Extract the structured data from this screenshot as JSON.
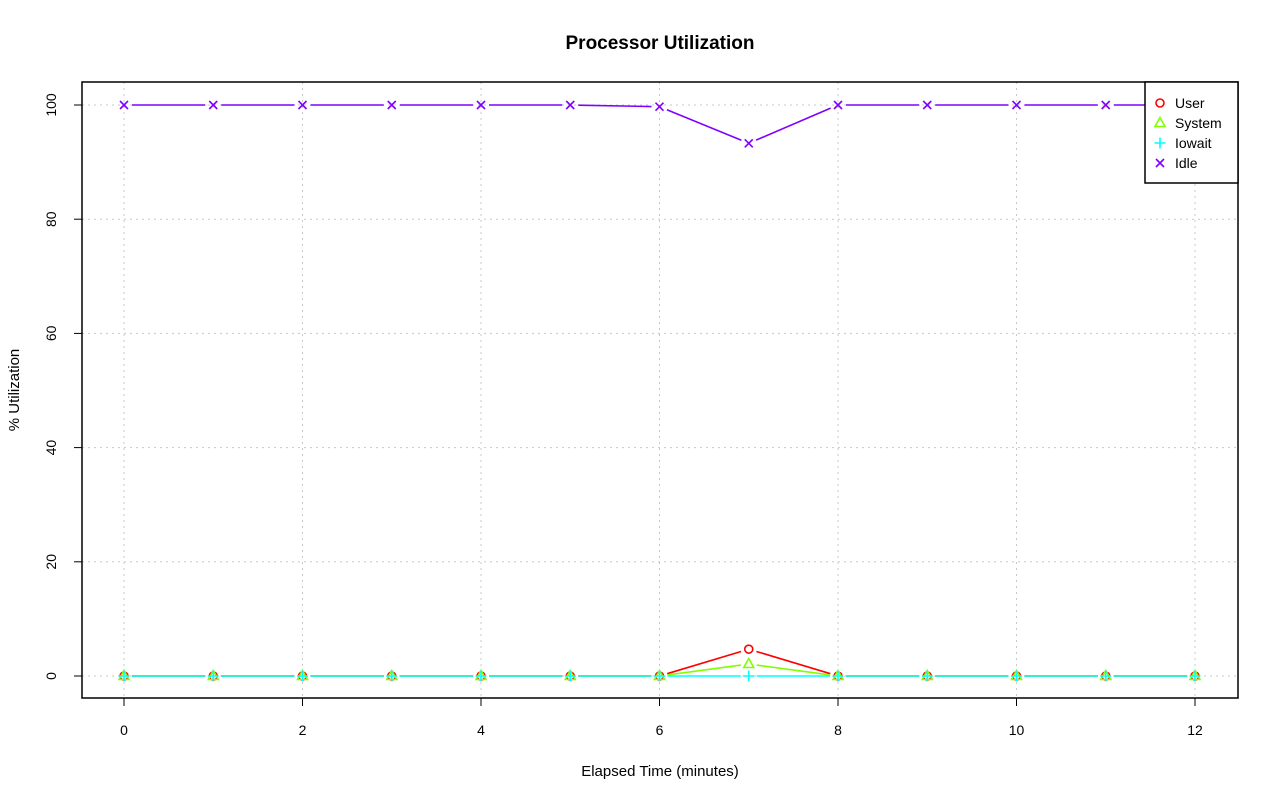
{
  "chart_data": {
    "type": "line",
    "title": "Processor Utilization",
    "xlabel": "Elapsed Time (minutes)",
    "ylabel": "% Utilization",
    "x": [
      0,
      1,
      2,
      3,
      4,
      5,
      6,
      7,
      8,
      9,
      10,
      11,
      12
    ],
    "xlim": [
      -0.47,
      12.47
    ],
    "ylim": [
      -4,
      104
    ],
    "xticks": [
      0,
      2,
      4,
      6,
      8,
      10,
      12
    ],
    "yticks": [
      0,
      20,
      40,
      60,
      80,
      100
    ],
    "grid": true,
    "legend_position": "top-right",
    "series": [
      {
        "name": "User",
        "color": "#ff0000",
        "marker": "circle",
        "values": [
          0,
          0,
          0,
          0,
          0,
          0,
          0,
          4.7,
          0,
          0,
          0,
          0,
          0
        ]
      },
      {
        "name": "System",
        "color": "#80ff00",
        "marker": "triangle",
        "values": [
          0,
          0,
          0,
          0,
          0,
          0,
          0,
          2.1,
          0,
          0,
          0,
          0,
          0
        ]
      },
      {
        "name": "Iowait",
        "color": "#00ffff",
        "marker": "plus",
        "values": [
          0,
          0,
          0,
          0,
          0,
          0,
          0,
          0,
          0,
          0,
          0,
          0,
          0
        ]
      },
      {
        "name": "Idle",
        "color": "#8000ff",
        "marker": "cross",
        "values": [
          100,
          100,
          100,
          100,
          100,
          100,
          99.7,
          93.3,
          100,
          100,
          100,
          100,
          100
        ]
      }
    ]
  }
}
